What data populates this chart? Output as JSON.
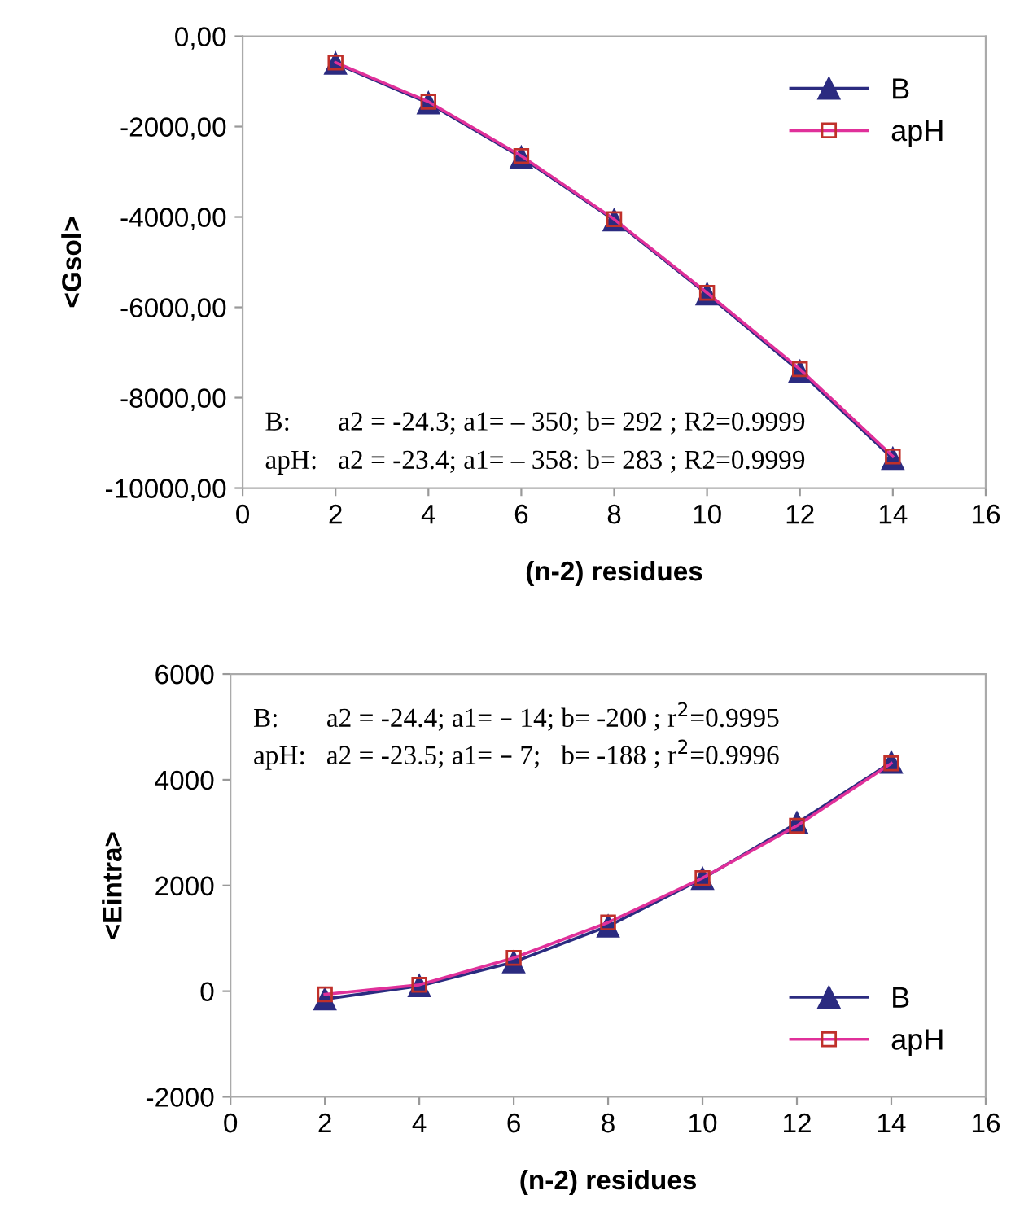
{
  "chart_data": [
    {
      "type": "line",
      "xlabel": "(n-2) residues",
      "ylabel": "<Gsol>",
      "x": [
        2,
        4,
        6,
        8,
        10,
        12,
        14
      ],
      "series": [
        {
          "name": "B",
          "color": "#2b2b80",
          "marker": "triangle",
          "values": [
            -600,
            -1480,
            -2680,
            -4070,
            -5710,
            -7420,
            -9350
          ]
        },
        {
          "name": "apH",
          "color": "#e0309a",
          "marker": "square",
          "values": [
            -580,
            -1450,
            -2650,
            -4050,
            -5680,
            -7370,
            -9300
          ]
        }
      ],
      "xlim": [
        0,
        16
      ],
      "xticks": [
        0,
        2,
        4,
        6,
        8,
        10,
        12,
        14,
        16
      ],
      "ylim": [
        -10000,
        0
      ],
      "yticks": [
        {
          "value": -10000,
          "label": "-10000,00"
        },
        {
          "value": -8000,
          "label": "-8000,00"
        },
        {
          "value": -6000,
          "label": "-6000,00"
        },
        {
          "value": -4000,
          "label": "-4000,00"
        },
        {
          "value": -2000,
          "label": "-2000,00"
        },
        {
          "value": 0,
          "label": "0,00"
        }
      ],
      "grid": false,
      "legend": "top right",
      "annotations": [
        "B:       a2 = -24.3; a1= – 350; b= 292 ; R2=0.9999",
        "apH:   a2 = -23.4; a1= – 358: b= 283 ; R2=0.9999"
      ]
    },
    {
      "type": "line",
      "xlabel": "(n-2) residues",
      "ylabel": "<Eintra>",
      "x": [
        2,
        4,
        6,
        8,
        10,
        12,
        14
      ],
      "series": [
        {
          "name": "B",
          "color": "#2b2b80",
          "marker": "triangle",
          "values": [
            -150,
            100,
            550,
            1230,
            2130,
            3180,
            4330
          ]
        },
        {
          "name": "apH",
          "color": "#e0309a",
          "marker": "square",
          "values": [
            -60,
            120,
            630,
            1300,
            2140,
            3130,
            4310
          ]
        }
      ],
      "xlim": [
        0,
        16
      ],
      "xticks": [
        0,
        2,
        4,
        6,
        8,
        10,
        12,
        14,
        16
      ],
      "ylim": [
        -2000,
        6000
      ],
      "yticks": [
        -2000,
        0,
        2000,
        4000,
        6000
      ],
      "grid": false,
      "legend": "bottom right",
      "annotations": [
        "B:       a2 = -24.4; a1= – 14; b= -200 ; r$^{2}$=0.9995",
        "apH:   a2 = -23.5; a1= – 7;   b= -188 ; r$^{2}$=0.9996"
      ]
    }
  ]
}
